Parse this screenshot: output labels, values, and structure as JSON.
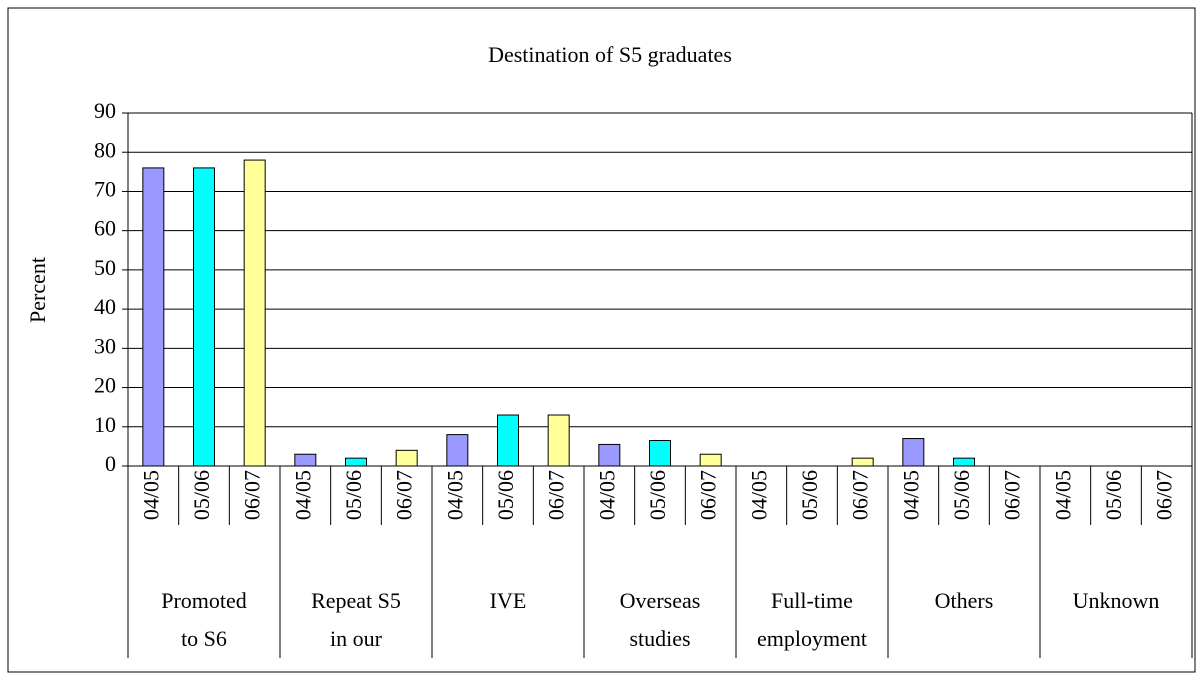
{
  "chart_data": {
    "type": "bar",
    "title": "Destination of S5 graduates",
    "y_label": "Percent",
    "categories": [
      "Promoted\nto S6",
      "Repeat S5\nin our",
      "IVE",
      "Overseas\nstudies",
      "Full-time\nemployment",
      "Others",
      "Unknown"
    ],
    "series": [
      {
        "name": "04/05",
        "color": "#9999ff",
        "values": [
          76,
          3,
          8,
          5.5,
          0,
          7,
          0
        ]
      },
      {
        "name": "05/06",
        "color": "#00ffff",
        "values": [
          76,
          2,
          13,
          6.5,
          0,
          2,
          0
        ]
      },
      {
        "name": "06/07",
        "color": "#ffff99",
        "values": [
          78,
          4,
          13,
          3,
          2,
          0,
          0
        ]
      }
    ],
    "ylim": [
      0,
      90
    ],
    "yticks": [
      0,
      10,
      20,
      30,
      40,
      50,
      60,
      70,
      80,
      90
    ],
    "grid": true
  }
}
